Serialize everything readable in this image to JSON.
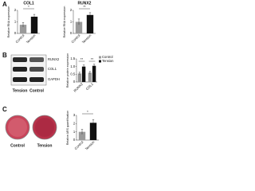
{
  "panel_labels": [
    "A",
    "B",
    "C"
  ],
  "blot": {
    "bands": [
      "RUNX2",
      "COL1",
      "GAPDH"
    ],
    "lanes": [
      "Tension",
      "Control"
    ]
  },
  "images": {
    "labels": [
      "Control",
      "Tension"
    ]
  },
  "chart_data": [
    {
      "type": "bar",
      "title": "COL1",
      "ylabel": "Relative RNA expression",
      "categories": [
        "Control",
        "Tension"
      ],
      "values": [
        0.75,
        1.45
      ],
      "errors": [
        0.2,
        0.2
      ],
      "colors": [
        "#9a9a9a",
        "#111111"
      ],
      "ylim": [
        0,
        2
      ],
      "yticks": [
        0,
        1,
        2
      ],
      "significance": "*"
    },
    {
      "type": "bar",
      "title": "RUNX2",
      "ylabel": "Relative RNA expression",
      "categories": [
        "Control",
        "Tension"
      ],
      "values": [
        1.0,
        1.6
      ],
      "errors": [
        0.25,
        0.2
      ],
      "colors": [
        "#9a9a9a",
        "#111111"
      ],
      "ylim": [
        0,
        2
      ],
      "yticks": [
        0,
        1,
        2
      ],
      "significance": "**"
    },
    {
      "type": "bar",
      "ylabel": "Relative protein expression",
      "categories": [
        "RUNX2",
        "COL1"
      ],
      "series": [
        {
          "name": "Control",
          "color": "#9a9a9a",
          "values": [
            0.55,
            0.6
          ],
          "errors": [
            0.08,
            0.08
          ]
        },
        {
          "name": "Tension",
          "color": "#111111",
          "values": [
            1.0,
            1.05
          ],
          "errors": [
            0.1,
            0.1
          ]
        }
      ],
      "ylim": [
        0,
        1.5
      ],
      "yticks": [
        0,
        0.5,
        {
          "value": 1,
          "label": "1.0"
        },
        1.5
      ],
      "significance": [
        "**",
        "**"
      ],
      "legend": "upper right"
    },
    {
      "type": "bar",
      "ylabel": "Relative ARS quantification",
      "categories": [
        "Control",
        "Tension"
      ],
      "values": [
        1.0,
        2.1
      ],
      "errors": [
        0.3,
        0.4
      ],
      "colors": [
        "#9a9a9a",
        "#111111"
      ],
      "ylim": [
        0,
        3
      ],
      "yticks": [
        0,
        1,
        2,
        3
      ],
      "significance": "*"
    }
  ]
}
